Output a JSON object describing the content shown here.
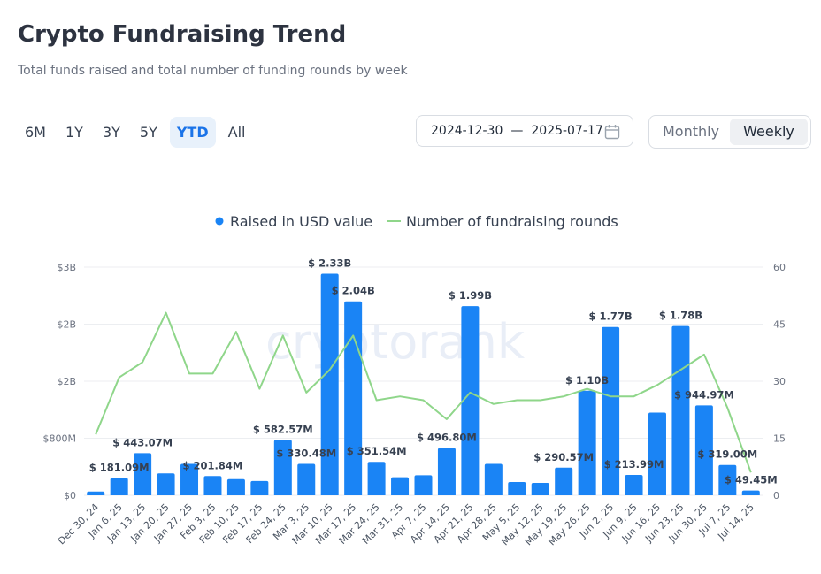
{
  "header": {
    "title": "Crypto Fundraising Trend",
    "subtitle": "Total funds raised and total number of funding rounds by week"
  },
  "ranges": [
    {
      "label": "6M",
      "active": false
    },
    {
      "label": "1Y",
      "active": false
    },
    {
      "label": "3Y",
      "active": false
    },
    {
      "label": "5Y",
      "active": false
    },
    {
      "label": "YTD",
      "active": true
    },
    {
      "label": "All",
      "active": false
    }
  ],
  "date_range": {
    "start": "2024-12-30",
    "separator": "—",
    "end": "2025-07-17",
    "icon": "calendar-icon"
  },
  "granularity": {
    "options": [
      "Monthly",
      "Weekly"
    ],
    "selected": "Weekly"
  },
  "watermark": "cryptorank",
  "chart_data": {
    "type": "bar",
    "legend": {
      "position": "top-center",
      "items": [
        "Raised in USD value",
        "Number of fundraising rounds"
      ]
    },
    "categories": [
      "Dec 30, 24",
      "Jan 6, 25",
      "Jan 13, 25",
      "Jan 20, 25",
      "Jan 27, 25",
      "Feb 3, 25",
      "Feb 10, 25",
      "Feb 17, 25",
      "Feb 24, 25",
      "Mar 3, 25",
      "Mar 10, 25",
      "Mar 17, 25",
      "Mar 24, 25",
      "Mar 31, 25",
      "Apr 7, 25",
      "Apr 14, 25",
      "Apr 21, 25",
      "Apr 28, 25",
      "May 5, 25",
      "May 12, 25",
      "May 19, 25",
      "May 26, 25",
      "Jun 2, 25",
      "Jun 9, 25",
      "Jun 16, 25",
      "Jun 23, 25",
      "Jun 30, 25",
      "Jul 7, 25",
      "Jul 14, 25"
    ],
    "series": [
      {
        "name": "Raised in USD value",
        "type": "bar",
        "axis": "left",
        "color": "#1a84f5",
        "values_usd_millions": [
          40,
          181.09,
          443.07,
          230,
          330,
          201.84,
          170,
          150,
          582.57,
          330.48,
          2330,
          2040,
          351.54,
          190,
          210,
          496.8,
          1990,
          330,
          140,
          130,
          290.57,
          1100,
          1770,
          213.99,
          870,
          1780,
          944.97,
          319.0,
          49.45
        ],
        "labels": [
          "",
          "$ 181.09M",
          "$ 443.07M",
          "",
          "",
          "$ 201.84M",
          "",
          "",
          "$ 582.57M",
          "$ 330.48M",
          "$ 2.33B",
          "$ 2.04B",
          "$ 351.54M",
          "",
          "",
          "$ 496.80M",
          "$ 1.99B",
          "",
          "",
          "",
          "$ 290.57M",
          "$ 1.10B",
          "$ 1.77B",
          "$ 213.99M",
          "",
          "$ 1.78B",
          "$ 944.97M",
          "$ 319.00M",
          "$ 49.45M"
        ]
      },
      {
        "name": "Number of fundraising rounds",
        "type": "line",
        "axis": "right",
        "color": "#8fd68a",
        "values": [
          16,
          31,
          35,
          48,
          32,
          32,
          43,
          28,
          42,
          27,
          33,
          42,
          25,
          26,
          25,
          20,
          27,
          24,
          25,
          25,
          26,
          28,
          26,
          26,
          29,
          33,
          37,
          23,
          6
        ]
      }
    ],
    "y_left": {
      "ticks": [
        "$0",
        "$800M",
        "$2B",
        "$2B",
        "$3B"
      ],
      "range_millions": [
        0,
        2400
      ]
    },
    "y_right": {
      "ticks": [
        "0",
        "15",
        "30",
        "45",
        "60"
      ],
      "range": [
        0,
        60
      ]
    },
    "grid": true
  }
}
